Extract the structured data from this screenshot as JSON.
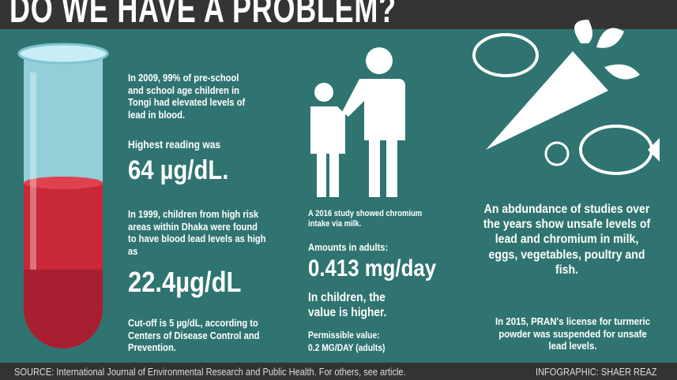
{
  "title": "DO WE HAVE A PROBLEM?",
  "left": {
    "p1": "In 2009, 99% of pre-school and school age children in Tongi had elevated levels of lead in blood.",
    "p2": "Highest reading was",
    "v1": "64 µg/dL.",
    "p3": "In 1999, children from high risk areas within Dhaka were found to have blood lead levels as high as",
    "v2": "22.4µg/dL",
    "p4": "Cut-off is 5 µg/dL, according to Centers of Disease Control and Prevention."
  },
  "middle": {
    "p1": "A 2016 study showed chromium intake via milk.",
    "p2": "Amounts in adults:",
    "v1": "0.413 mg/day",
    "p3": "In children, the value is higher.",
    "p4": "Permissible value:",
    "p5": "0.2 MG/DAY (adults)"
  },
  "right": {
    "p1": "An abdundance of studies over the years show unsafe levels of lead and chromium in milk, eggs, vegetables, poultry and fish.",
    "p2": "In 2015, PRAN's license for turmeric powder was suspended for unsafe lead levels."
  },
  "footer": {
    "source": "SOURCE: International Journal of Environmental Research and Public Health. For others, see article.",
    "credit": "INFOGRAPHIC: SHAER REAZ"
  },
  "colors": {
    "background": "#2f7471",
    "bars": "#343434",
    "blood": "#c8283a",
    "tube": "#a9dde8"
  }
}
